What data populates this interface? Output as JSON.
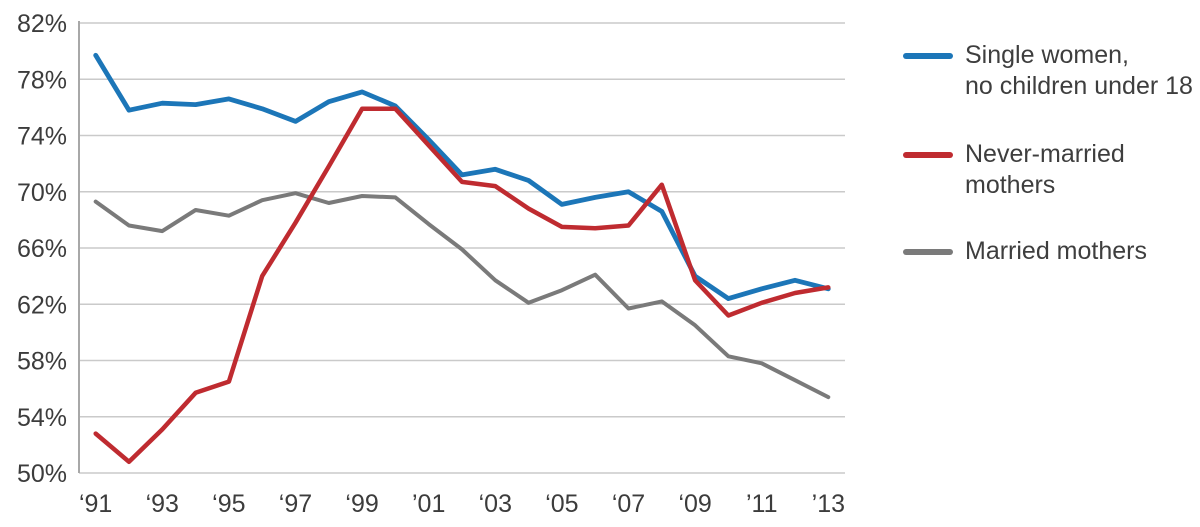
{
  "page": {
    "background": "#ffffff"
  },
  "chart_data": {
    "type": "line",
    "title": "",
    "xlabel": "",
    "ylabel": "",
    "x": [
      1991,
      1992,
      1993,
      1994,
      1995,
      1996,
      1997,
      1998,
      1999,
      2000,
      2001,
      2002,
      2003,
      2004,
      2005,
      2006,
      2007,
      2008,
      2009,
      2010,
      2011,
      2012,
      2013
    ],
    "x_tick_years": [
      1991,
      1993,
      1995,
      1997,
      1999,
      2001,
      2003,
      2005,
      2007,
      2009,
      2011,
      2013
    ],
    "x_tick_labels": [
      "‘91",
      "‘93",
      "‘95",
      "‘97",
      "‘99",
      "’01",
      "‘03",
      "‘05",
      "‘07",
      "‘09",
      "’11",
      "’13"
    ],
    "y_ticks": [
      82,
      78,
      74,
      70,
      66,
      62,
      58,
      54,
      50
    ],
    "y_tick_labels": [
      "82%",
      "78%",
      "74%",
      "70%",
      "66%",
      "62%",
      "58%",
      "54%",
      "50%"
    ],
    "ylim": [
      50,
      82
    ],
    "grid": true,
    "grid_color": "#cacaca",
    "axis_line_color": "#a8a8a8",
    "tick_text_color": "#3c3c3c",
    "legend_position": "right",
    "series": [
      {
        "name": "Single women,\nno children under 18",
        "id": "single-women-no-children-under-18",
        "color": "#1c76b8",
        "stroke_width": 4.8,
        "values": [
          79.7,
          75.8,
          76.3,
          76.2,
          76.6,
          75.9,
          75.0,
          76.4,
          77.1,
          76.1,
          73.7,
          71.2,
          71.6,
          70.8,
          69.1,
          69.6,
          70.0,
          68.6,
          64.0,
          62.4,
          63.1,
          63.7,
          63.1
        ]
      },
      {
        "name": "Never-married mothers",
        "id": "never-married-mothers",
        "color": "#bf2b30",
        "stroke_width": 4.5,
        "values": [
          52.8,
          50.8,
          53.1,
          55.7,
          56.5,
          64.0,
          67.8,
          71.8,
          75.9,
          75.9,
          73.3,
          70.7,
          70.4,
          68.8,
          67.5,
          67.4,
          67.6,
          70.5,
          63.7,
          61.2,
          62.1,
          62.8,
          63.2
        ]
      },
      {
        "name": "Married mothers",
        "id": "married-mothers",
        "color": "#7a7a7a",
        "stroke_width": 4.0,
        "values": [
          69.3,
          67.6,
          67.2,
          68.7,
          68.3,
          69.4,
          69.9,
          69.2,
          69.7,
          69.6,
          67.7,
          65.9,
          63.7,
          62.1,
          63.0,
          64.1,
          61.7,
          62.2,
          60.5,
          58.3,
          57.8,
          56.6,
          55.4
        ]
      }
    ]
  }
}
